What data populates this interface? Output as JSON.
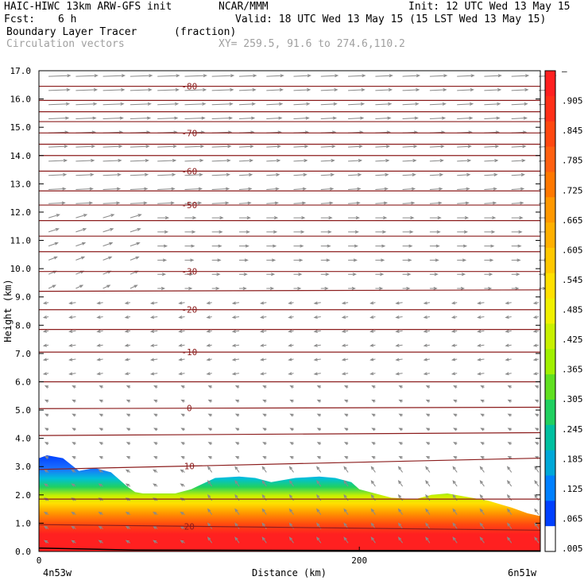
{
  "header": {
    "line1_left": "HAIC-HIWC 13km ARW-GFS init",
    "line1_mid": "NCAR/MMM",
    "line1_right": "Init: 12 UTC Wed 13 May 15",
    "line2_left": "Fcst:",
    "line2_fcst": "6 h",
    "line2_right": "Valid: 18 UTC Wed 13 May 15 (15 LST Wed 13 May 15)",
    "line3_field": "Boundary Layer Tracer",
    "line3_units": "(fraction)",
    "line4_field": "Circulation vectors",
    "line4_xy": "XY= 259.5, 91.6 to 274.6,110.2"
  },
  "chart_data": {
    "type": "heatmap",
    "ylabel": "Height (km)",
    "xlabel": "Distance (km)",
    "ylim": [
      0,
      17
    ],
    "xlim": [
      0,
      313
    ],
    "yticks": [
      "0.0",
      "1.0",
      "2.0",
      "3.0",
      "4.0",
      "5.0",
      "6.0",
      "7.0",
      "8.0",
      "9.0",
      "10.0",
      "11.0",
      "12.0",
      "13.0",
      "14.0",
      "15.0",
      "16.0",
      "17.0"
    ],
    "xticks": [
      {
        "value": 0,
        "label": "0"
      },
      {
        "value": 200,
        "label": "200"
      }
    ],
    "endpoints": {
      "left": "4n53w",
      "right": "6n51w"
    },
    "colorbar": {
      "labels": [
        "–",
        ".905",
        ".845",
        ".785",
        ".725",
        ".665",
        ".605",
        ".545",
        ".485",
        ".425",
        ".365",
        ".305",
        ".245",
        ".185",
        ".125",
        ".065",
        ".005"
      ],
      "colors": [
        "#ff2020",
        "#ff3018",
        "#ff4810",
        "#ff6010",
        "#ff7800",
        "#ff9800",
        "#ffb000",
        "#ffc800",
        "#ffe000",
        "#f0f000",
        "#c8f000",
        "#a0f000",
        "#60e020",
        "#20d060",
        "#00c0a0",
        "#00a8d8",
        "#0080ff",
        "#0040ff",
        "#ffffff"
      ]
    },
    "tracer_top": {
      "x": [
        0,
        5,
        15,
        25,
        30,
        35,
        45,
        55,
        60,
        65,
        85,
        95,
        110,
        125,
        135,
        145,
        160,
        175,
        185,
        195,
        200,
        220,
        235,
        245,
        255,
        265,
        280,
        295,
        305,
        313
      ],
      "y": [
        3.3,
        3.4,
        3.3,
        2.85,
        2.9,
        2.95,
        2.8,
        2.3,
        2.1,
        2.05,
        2.05,
        2.2,
        2.6,
        2.65,
        2.6,
        2.45,
        2.6,
        2.65,
        2.6,
        2.45,
        2.2,
        1.9,
        1.85,
        2.0,
        2.05,
        1.95,
        1.8,
        1.55,
        1.35,
        1.25
      ]
    },
    "isotherms": [
      {
        "label": "-80",
        "y": [
          16.45,
          16.45
        ]
      },
      {
        "label": "",
        "y": [
          15.95,
          15.95
        ]
      },
      {
        "label": "",
        "y": [
          15.55,
          15.55
        ]
      },
      {
        "label": "",
        "y": [
          15.2,
          15.2
        ]
      },
      {
        "label": "-70",
        "y": [
          14.8,
          14.8
        ]
      },
      {
        "label": "",
        "y": [
          14.4,
          14.4
        ]
      },
      {
        "label": "",
        "y": [
          14.0,
          14.0
        ]
      },
      {
        "label": "-60",
        "y": [
          13.45,
          13.45
        ]
      },
      {
        "label": "",
        "y": [
          12.75,
          12.75
        ]
      },
      {
        "label": "-50",
        "y": [
          12.25,
          12.25
        ]
      },
      {
        "label": "",
        "y": [
          11.7,
          11.7
        ]
      },
      {
        "label": "",
        "y": [
          11.15,
          11.15
        ]
      },
      {
        "label": "",
        "y": [
          10.6,
          10.6
        ]
      },
      {
        "label": "-30",
        "y": [
          9.9,
          9.9
        ]
      },
      {
        "label": "",
        "y": [
          9.2,
          9.25
        ]
      },
      {
        "label": "-20",
        "y": [
          8.55,
          8.55
        ]
      },
      {
        "label": "",
        "y": [
          7.85,
          7.85
        ]
      },
      {
        "label": "-10",
        "y": [
          7.05,
          7.05
        ]
      },
      {
        "label": "",
        "y": [
          6.0,
          6.0
        ]
      },
      {
        "label": "0",
        "y": [
          5.05,
          5.1
        ]
      },
      {
        "label": "",
        "y": [
          4.1,
          4.2
        ]
      },
      {
        "label": "10",
        "y": [
          2.9,
          3.3
        ]
      },
      {
        "label": "",
        "y": [
          1.85,
          1.85
        ]
      },
      {
        "label": "20",
        "y": [
          0.95,
          0.75
        ]
      }
    ]
  }
}
